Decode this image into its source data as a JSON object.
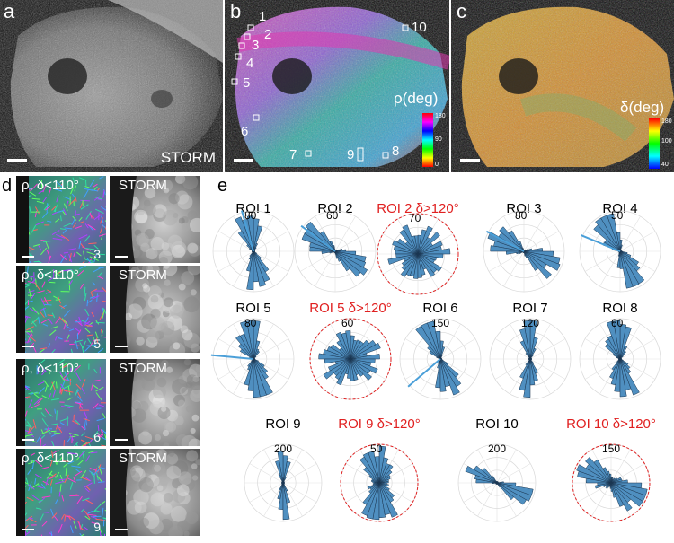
{
  "panels": {
    "a": {
      "letter": "a",
      "label": "STORM"
    },
    "b": {
      "letter": "b",
      "colorbar_title": "ρ(deg)",
      "colorbar_ticks": [
        "180",
        "90",
        "0"
      ],
      "roi_numbers": [
        "1",
        "2",
        "3",
        "4",
        "5",
        "6",
        "7",
        "8",
        "9",
        "10"
      ]
    },
    "c": {
      "letter": "c",
      "colorbar_title": "δ(deg)",
      "colorbar_ticks": [
        "180",
        "100",
        "40"
      ]
    },
    "d": {
      "letter": "d",
      "tiles": [
        {
          "left": "ρ, δ<110°",
          "right": "STORM",
          "num": "3"
        },
        {
          "left": "ρ, δ<110°",
          "right": "STORM",
          "num": "5"
        },
        {
          "left": "ρ, δ<110°",
          "right": "STORM",
          "num": "6"
        },
        {
          "left": "ρ, δ<110°",
          "right": "STORM",
          "num": "9"
        }
      ]
    },
    "e": {
      "letter": "e",
      "plots": [
        {
          "title": "ROI 1",
          "red": false,
          "max": "80",
          "style": "narrow1"
        },
        {
          "title": "ROI 2",
          "red": false,
          "max": "60",
          "style": "narrow2"
        },
        {
          "title": "ROI 2  δ>120°",
          "red": true,
          "max": "70",
          "style": "round"
        },
        {
          "title": "ROI 3",
          "red": false,
          "max": "80",
          "style": "narrow3"
        },
        {
          "title": "ROI 4",
          "red": false,
          "max": "50",
          "style": "narrow4"
        },
        {
          "title": "ROI 5",
          "red": false,
          "max": "80",
          "style": "narrow5"
        },
        {
          "title": "ROI 5  δ>120°",
          "red": true,
          "max": "60",
          "style": "round"
        },
        {
          "title": "ROI 6",
          "red": false,
          "max": "150",
          "style": "narrow6"
        },
        {
          "title": "ROI 7",
          "red": false,
          "max": "120",
          "style": "vert"
        },
        {
          "title": "ROI 8",
          "red": false,
          "max": "60",
          "style": "narrow8"
        },
        {
          "title": "ROI 9",
          "red": false,
          "max": "200",
          "style": "vertthin"
        },
        {
          "title": "ROI 9  δ>120°",
          "red": true,
          "max": "50",
          "style": "vertwide"
        },
        {
          "title": "ROI 10",
          "red": false,
          "max": "200",
          "style": "diag"
        },
        {
          "title": "ROI 10  δ>120°",
          "red": true,
          "max": "150",
          "style": "diagwide"
        }
      ]
    }
  },
  "colors": {
    "bar_fill": "#4f8fc0",
    "bar_stroke": "#1a3550",
    "red": "#e02020",
    "highlight_line": "#4a9fd8"
  }
}
